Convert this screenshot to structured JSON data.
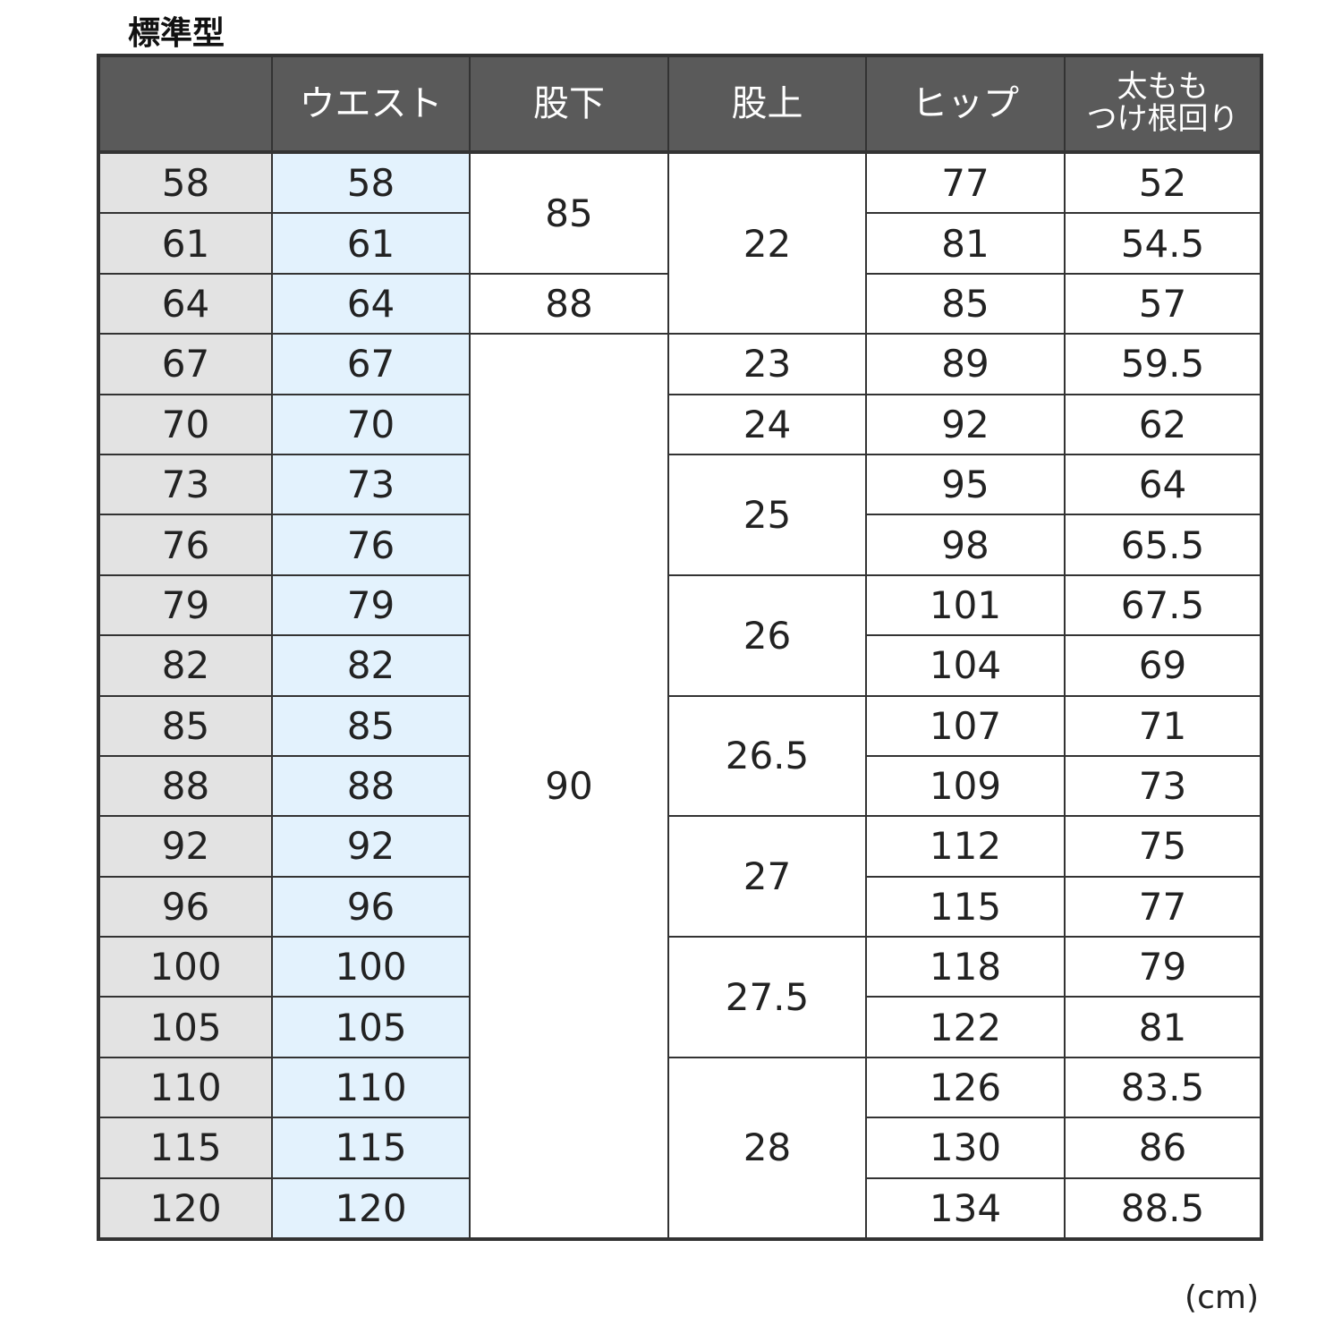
{
  "title": "標準型",
  "unit": "(cm)",
  "colors": {
    "header_bg": "#5a5a5a",
    "size_col_bg": "#e3e3e3",
    "waist_col_bg": "#e3f2fd",
    "border": "#333333"
  },
  "headers": [
    "",
    "ウエスト",
    "股下",
    "股上",
    "ヒップ",
    "太もも\nつけ根回り"
  ],
  "sizes": [
    "58",
    "61",
    "64",
    "67",
    "70",
    "73",
    "76",
    "79",
    "82",
    "85",
    "88",
    "92",
    "96",
    "100",
    "105",
    "110",
    "115",
    "120"
  ],
  "waist": [
    "58",
    "61",
    "64",
    "67",
    "70",
    "73",
    "76",
    "79",
    "82",
    "85",
    "88",
    "92",
    "96",
    "100",
    "105",
    "110",
    "115",
    "120"
  ],
  "inseam": [
    {
      "value": "85",
      "rows": 2
    },
    {
      "value": "88",
      "rows": 1
    },
    {
      "value": "90",
      "rows": 15
    }
  ],
  "rise": [
    {
      "value": "22",
      "rows": 3
    },
    {
      "value": "23",
      "rows": 1
    },
    {
      "value": "24",
      "rows": 1
    },
    {
      "value": "25",
      "rows": 2
    },
    {
      "value": "26",
      "rows": 2
    },
    {
      "value": "26.5",
      "rows": 2
    },
    {
      "value": "27",
      "rows": 2
    },
    {
      "value": "27.5",
      "rows": 2
    },
    {
      "value": "28",
      "rows": 3
    }
  ],
  "hip": [
    "77",
    "81",
    "85",
    "89",
    "92",
    "95",
    "98",
    "101",
    "104",
    "107",
    "109",
    "112",
    "115",
    "118",
    "122",
    "126",
    "130",
    "134"
  ],
  "thigh": [
    "52",
    "54.5",
    "57",
    "59.5",
    "62",
    "64",
    "65.5",
    "67.5",
    "69",
    "71",
    "73",
    "75",
    "77",
    "79",
    "81",
    "83.5",
    "86",
    "88.5"
  ]
}
